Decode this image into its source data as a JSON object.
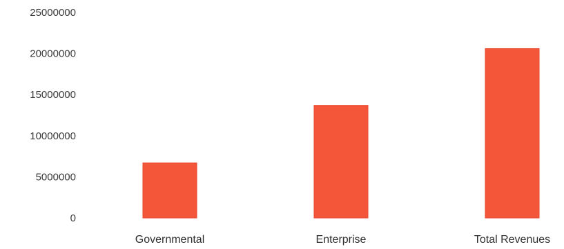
{
  "chart_data": {
    "type": "bar",
    "title": "",
    "xlabel": "",
    "ylabel": "",
    "categories": [
      "Governmental",
      "Enterprise",
      "Total Revenues"
    ],
    "values": [
      6700000,
      13700000,
      20600000
    ],
    "ylim": [
      0,
      25000000
    ],
    "yticks": [
      "0",
      "5000000",
      "10000000",
      "15000000",
      "20000000",
      "25000000"
    ],
    "grid": false,
    "legend": "none",
    "bar_color": "#f4563a",
    "bar_edge_color": "#e8472c"
  }
}
